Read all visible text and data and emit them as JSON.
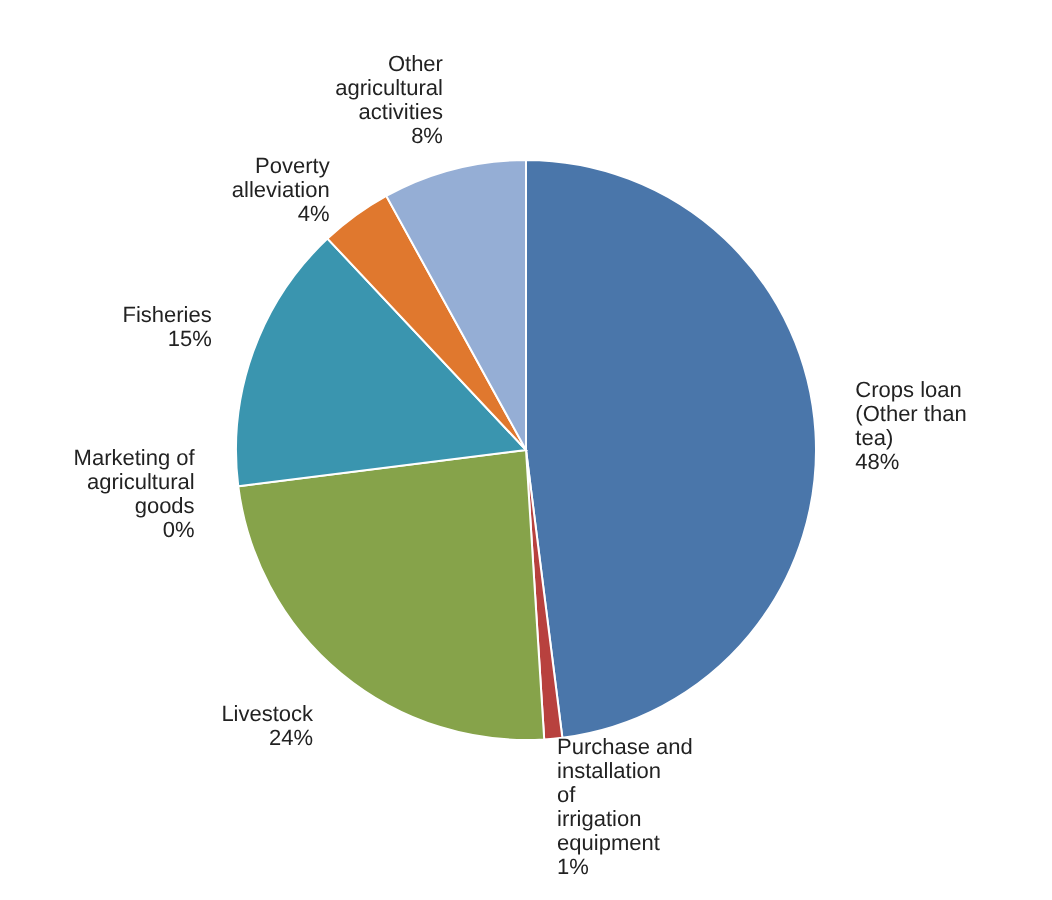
{
  "chart_data": {
    "type": "pie",
    "categories": [
      "Crops loan (Other than tea)",
      "Purchase and installation of irrigation equipment",
      "Livestock",
      "Marketing of agricultural goods",
      "Fisheries",
      "Poverty alleviation",
      "Other agricultural activities"
    ],
    "values": [
      48,
      1,
      24,
      0,
      15,
      4,
      8
    ],
    "colors": [
      "#4a76aa",
      "#b8413e",
      "#86a34a",
      "#7f6a9e",
      "#3a95af",
      "#e0782e",
      "#95aed5"
    ],
    "value_labels": [
      "48%",
      "1%",
      "24%",
      "0%",
      "15%",
      "4%",
      "8%"
    ]
  }
}
